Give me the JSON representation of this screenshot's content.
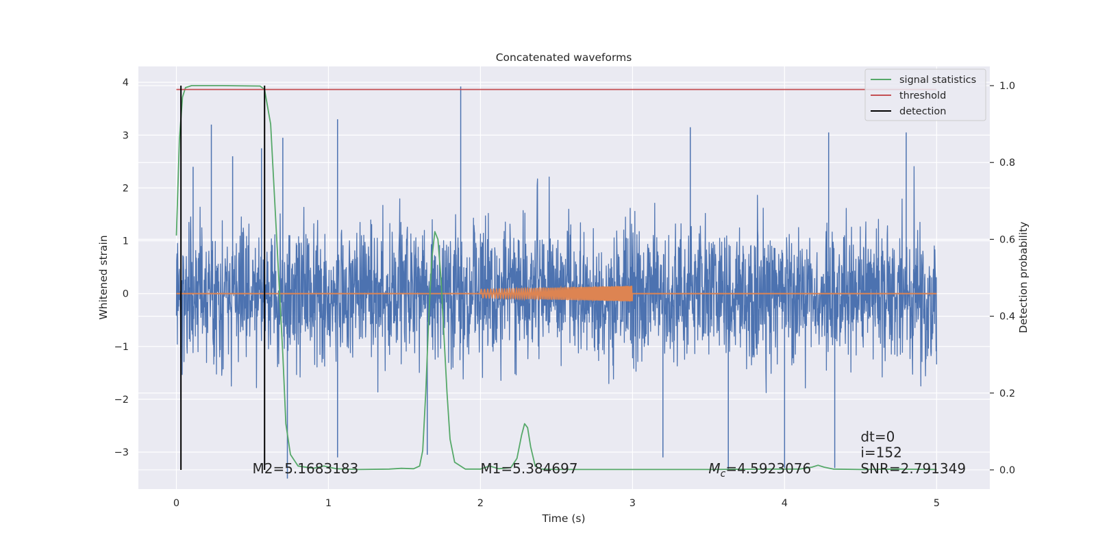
{
  "chart_data": {
    "type": "line",
    "title": "Concatenated waveforms",
    "xlabel": "Time (s)",
    "ylabel": "Whitened strain",
    "y2label": "Detection probability",
    "xlim": [
      -0.25,
      5.35
    ],
    "ylim": [
      -3.7,
      4.3
    ],
    "y2lim": [
      -0.05,
      1.05
    ],
    "xticks": [
      0,
      1,
      2,
      3,
      4,
      5
    ],
    "xtick_labels": [
      "0",
      "1",
      "2",
      "3",
      "4",
      "5"
    ],
    "yticks": [
      4,
      3,
      2,
      1,
      0,
      -1,
      -2,
      -3
    ],
    "ytick_labels": [
      "4",
      "3",
      "2",
      "1",
      "0",
      "−1",
      "−2",
      "−3"
    ],
    "y2ticks": [
      1.0,
      0.8,
      0.6,
      0.4,
      0.2,
      0.0
    ],
    "y2tick_labels": [
      "1.0",
      "0.8",
      "0.6",
      "0.4",
      "0.2",
      "0.0"
    ],
    "grid": true,
    "legend_position": "top-right",
    "legend": [
      "signal statistics",
      "threshold",
      "detection"
    ],
    "colors": {
      "noise": "#4c72b0",
      "waveform": "#dd8452",
      "signal_statistics": "#55a868",
      "threshold": "#c44e52",
      "detection": "#000000",
      "axes_bg": "#eaeaf2",
      "grid": "#ffffff"
    },
    "series": [
      {
        "name": "",
        "axis": "left",
        "kind": "noise",
        "x_range": [
          0,
          5
        ],
        "envelope_y": [
          -3.55,
          3.92
        ],
        "peaks": [
          {
            "x": 0.11,
            "y": 2.4
          },
          {
            "x": 0.23,
            "y": 3.2
          },
          {
            "x": 0.37,
            "y": 2.6
          },
          {
            "x": 0.56,
            "y": 2.75
          },
          {
            "x": 0.7,
            "y": 2.95
          },
          {
            "x": 1.06,
            "y": 3.3
          },
          {
            "x": 1.87,
            "y": 3.92
          },
          {
            "x": 3.38,
            "y": 3.15
          },
          {
            "x": 4.29,
            "y": 3.05
          },
          {
            "x": 4.8,
            "y": 3.05
          },
          {
            "x": 0.03,
            "y": -2.05
          },
          {
            "x": 0.73,
            "y": -3.5
          },
          {
            "x": 1.06,
            "y": -3.1
          },
          {
            "x": 1.65,
            "y": -3.05
          },
          {
            "x": 3.2,
            "y": -3.1
          },
          {
            "x": 3.63,
            "y": -3.35
          },
          {
            "x": 4.0,
            "y": -3.3
          },
          {
            "x": 4.33,
            "y": -3.3
          }
        ]
      },
      {
        "name": "",
        "axis": "left",
        "kind": "injected_waveform",
        "baseline": {
          "x": [
            0,
            5
          ],
          "y": 0
        },
        "chirp": {
          "x_start": 2.0,
          "x_end": 3.0,
          "amp_start": 0.08,
          "amp_end": 0.15
        }
      },
      {
        "name": "signal statistics",
        "axis": "right",
        "x": [
          0.0,
          0.02,
          0.04,
          0.06,
          0.1,
          0.3,
          0.55,
          0.58,
          0.62,
          0.66,
          0.7,
          0.72,
          0.75,
          0.8,
          0.9,
          0.97,
          1.05,
          1.2,
          1.4,
          1.48,
          1.56,
          1.6,
          1.62,
          1.64,
          1.66,
          1.68,
          1.7,
          1.72,
          1.74,
          1.76,
          1.78,
          1.8,
          1.83,
          1.9,
          2.0,
          2.06,
          2.12,
          2.2,
          2.24,
          2.27,
          2.29,
          2.31,
          2.33,
          2.36,
          2.4,
          2.5,
          3.0,
          3.5,
          3.9,
          4.1,
          4.18,
          4.22,
          4.26,
          4.32,
          4.5,
          4.75,
          5.0
        ],
        "y": [
          0.61,
          0.86,
          0.97,
          0.995,
          1.0,
          1.0,
          0.999,
          0.99,
          0.9,
          0.6,
          0.3,
          0.12,
          0.04,
          0.01,
          0.004,
          0.01,
          0.003,
          0.001,
          0.002,
          0.004,
          0.003,
          0.01,
          0.05,
          0.2,
          0.4,
          0.55,
          0.62,
          0.6,
          0.5,
          0.35,
          0.2,
          0.08,
          0.02,
          0.002,
          0.002,
          0.01,
          0.003,
          0.006,
          0.03,
          0.09,
          0.12,
          0.11,
          0.06,
          0.01,
          0.002,
          0.001,
          0.001,
          0.001,
          0.002,
          0.002,
          0.007,
          0.012,
          0.007,
          0.002,
          0.001,
          0.002,
          0.001
        ]
      },
      {
        "name": "threshold",
        "axis": "right",
        "x": [
          0,
          5
        ],
        "y": [
          0.99,
          0.99
        ]
      },
      {
        "name": "detection",
        "axis": "right",
        "kind": "vertical_lines",
        "x": [
          0.03,
          0.58
        ],
        "y_range": [
          0,
          1.0
        ]
      }
    ],
    "annotations": [
      {
        "id": "m2",
        "text": "M2=5.1683183",
        "x": 0.5,
        "y": -3.4
      },
      {
        "id": "m1",
        "text": "M1=5.384697",
        "x": 2.0,
        "y": -3.4
      },
      {
        "id": "mc",
        "text_parts": [
          "M",
          "c",
          "=4.5923076"
        ],
        "x": 3.5,
        "y": -3.4
      },
      {
        "id": "dt",
        "text": "dt=0",
        "x": 4.5,
        "y": -2.8
      },
      {
        "id": "idx",
        "text": "i=152",
        "x": 4.5,
        "y": -3.1
      },
      {
        "id": "snr",
        "text": "SNR=2.791349",
        "x": 4.5,
        "y": -3.4
      }
    ]
  }
}
